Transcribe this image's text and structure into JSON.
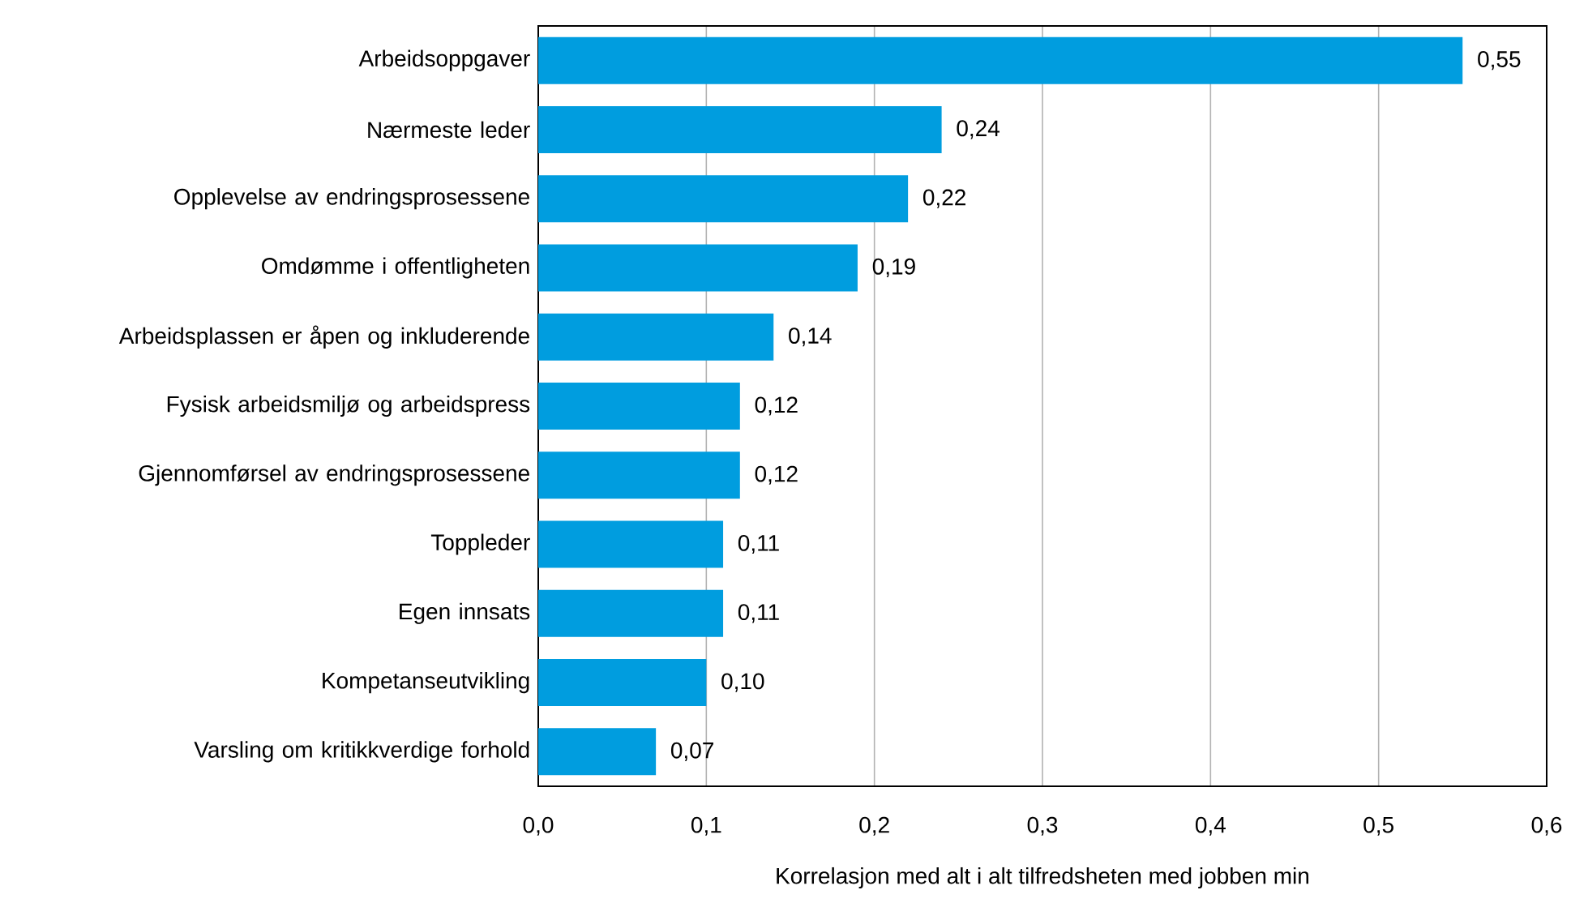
{
  "chart_data": {
    "type": "bar",
    "orientation": "horizontal",
    "categories": [
      "Arbeidsoppgaver",
      "Nærmeste leder",
      "Opplevelse av endringsprosessene",
      "Omdømme i offentligheten",
      "Arbeidsplassen er åpen og inkluderende",
      "Fysisk arbeidsmiljø og arbeidspress",
      "Gjennomførsel av endringsprosessene",
      "Toppleder",
      "Egen innsats",
      "Kompetanseutvikling",
      "Varsling om kritikkverdige forhold"
    ],
    "values": [
      0.55,
      0.24,
      0.22,
      0.19,
      0.14,
      0.12,
      0.12,
      0.11,
      0.11,
      0.1,
      0.07
    ],
    "value_labels": [
      "0,55",
      "0,24",
      "0,22",
      "0,19",
      "0,14",
      "0,12",
      "0,12",
      "0,11",
      "0,11",
      "0,10",
      "0,07"
    ],
    "color": "#009ddf",
    "xlim": [
      0,
      0.6
    ],
    "xticks": [
      {
        "value": 0,
        "label": "0,0"
      },
      {
        "value": 0.1,
        "label": "0,1"
      },
      {
        "value": 0.2,
        "label": "0,2"
      },
      {
        "value": 0.3,
        "label": "0,3"
      },
      {
        "value": 0.4,
        "label": "0,4"
      },
      {
        "value": 0.5,
        "label": "0,5"
      },
      {
        "value": 0.6,
        "label": "0,6"
      }
    ],
    "xlabel": "Korrelasjon med alt i alt tilfredsheten med jobben min",
    "grid": "x"
  }
}
